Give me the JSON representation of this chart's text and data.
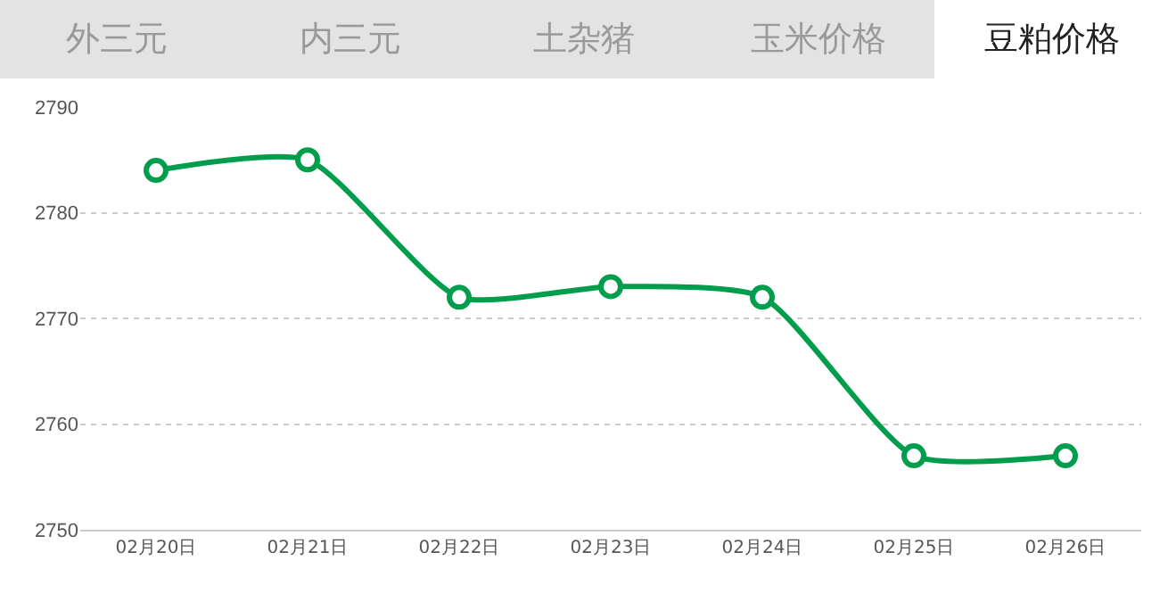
{
  "chart_data": {
    "type": "line",
    "title": "豆粕价格",
    "annotations": [
      "外三元",
      "内三元",
      "土杂猪",
      "玉米价格"
    ],
    "categories": [
      "02月20日",
      "02月21日",
      "02月22日",
      "02月23日",
      "02月24日",
      "02月25日",
      "02月26日"
    ],
    "series": [
      {
        "color": "#009e4c",
        "values": [
          2784,
          2785,
          2772,
          2773,
          2772,
          2757,
          2757
        ]
      }
    ],
    "ylim": [
      2750,
      2790
    ],
    "yticks": [
      2750,
      2760,
      2770,
      2780,
      2790
    ],
    "grid": "y",
    "marker": "circle",
    "line_style": "solid"
  }
}
